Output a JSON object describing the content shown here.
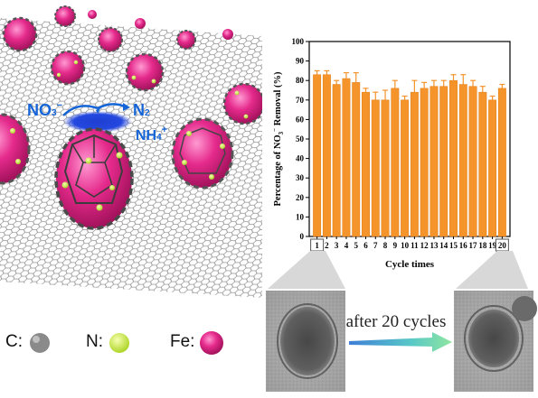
{
  "illustration": {
    "species": {
      "nitrate": "NO",
      "nitrate_sub": "3",
      "nitrate_sup": "−",
      "nitrogen": "N",
      "nitrogen_sub": "2",
      "ammonium": "NH",
      "ammonium_sub": "4",
      "ammonium_sup": "+"
    },
    "legend": [
      {
        "label": "C:",
        "color": "#8a8a8a"
      },
      {
        "label": "N:",
        "color": "#d9f542"
      },
      {
        "label": "Fe:",
        "color": "#e0207a"
      }
    ]
  },
  "chart_data": {
    "type": "bar",
    "ylabel": "Percentage of NO3− Removal (%)",
    "ylabel_parts": {
      "pre": "Percentage of NO",
      "sub": "3",
      "sup": "−",
      "post": " Removal (%)"
    },
    "xlabel": "Cycle times",
    "categories": [
      "1",
      "2",
      "3",
      "4",
      "5",
      "6",
      "7",
      "8",
      "9",
      "10",
      "11",
      "12",
      "13",
      "14",
      "15",
      "16",
      "17",
      "18",
      "19",
      "20"
    ],
    "values": [
      83,
      83,
      78,
      81,
      79,
      74,
      70,
      70,
      76,
      70,
      74,
      76,
      77,
      77,
      80,
      78,
      77,
      74,
      70,
      76
    ],
    "errors": [
      2,
      2,
      2,
      3,
      5,
      2,
      4,
      5,
      4,
      2,
      6,
      3,
      3,
      3,
      3,
      5,
      3,
      3,
      2,
      2
    ],
    "ylim": [
      0,
      100
    ],
    "yticks": [
      0,
      10,
      20,
      30,
      40,
      50,
      60,
      70,
      80,
      90,
      100
    ],
    "bar_color": "#f5942b",
    "highlight_labels": [
      "1",
      "20"
    ]
  },
  "tem": {
    "arrow_label": "after 20 cycles"
  }
}
